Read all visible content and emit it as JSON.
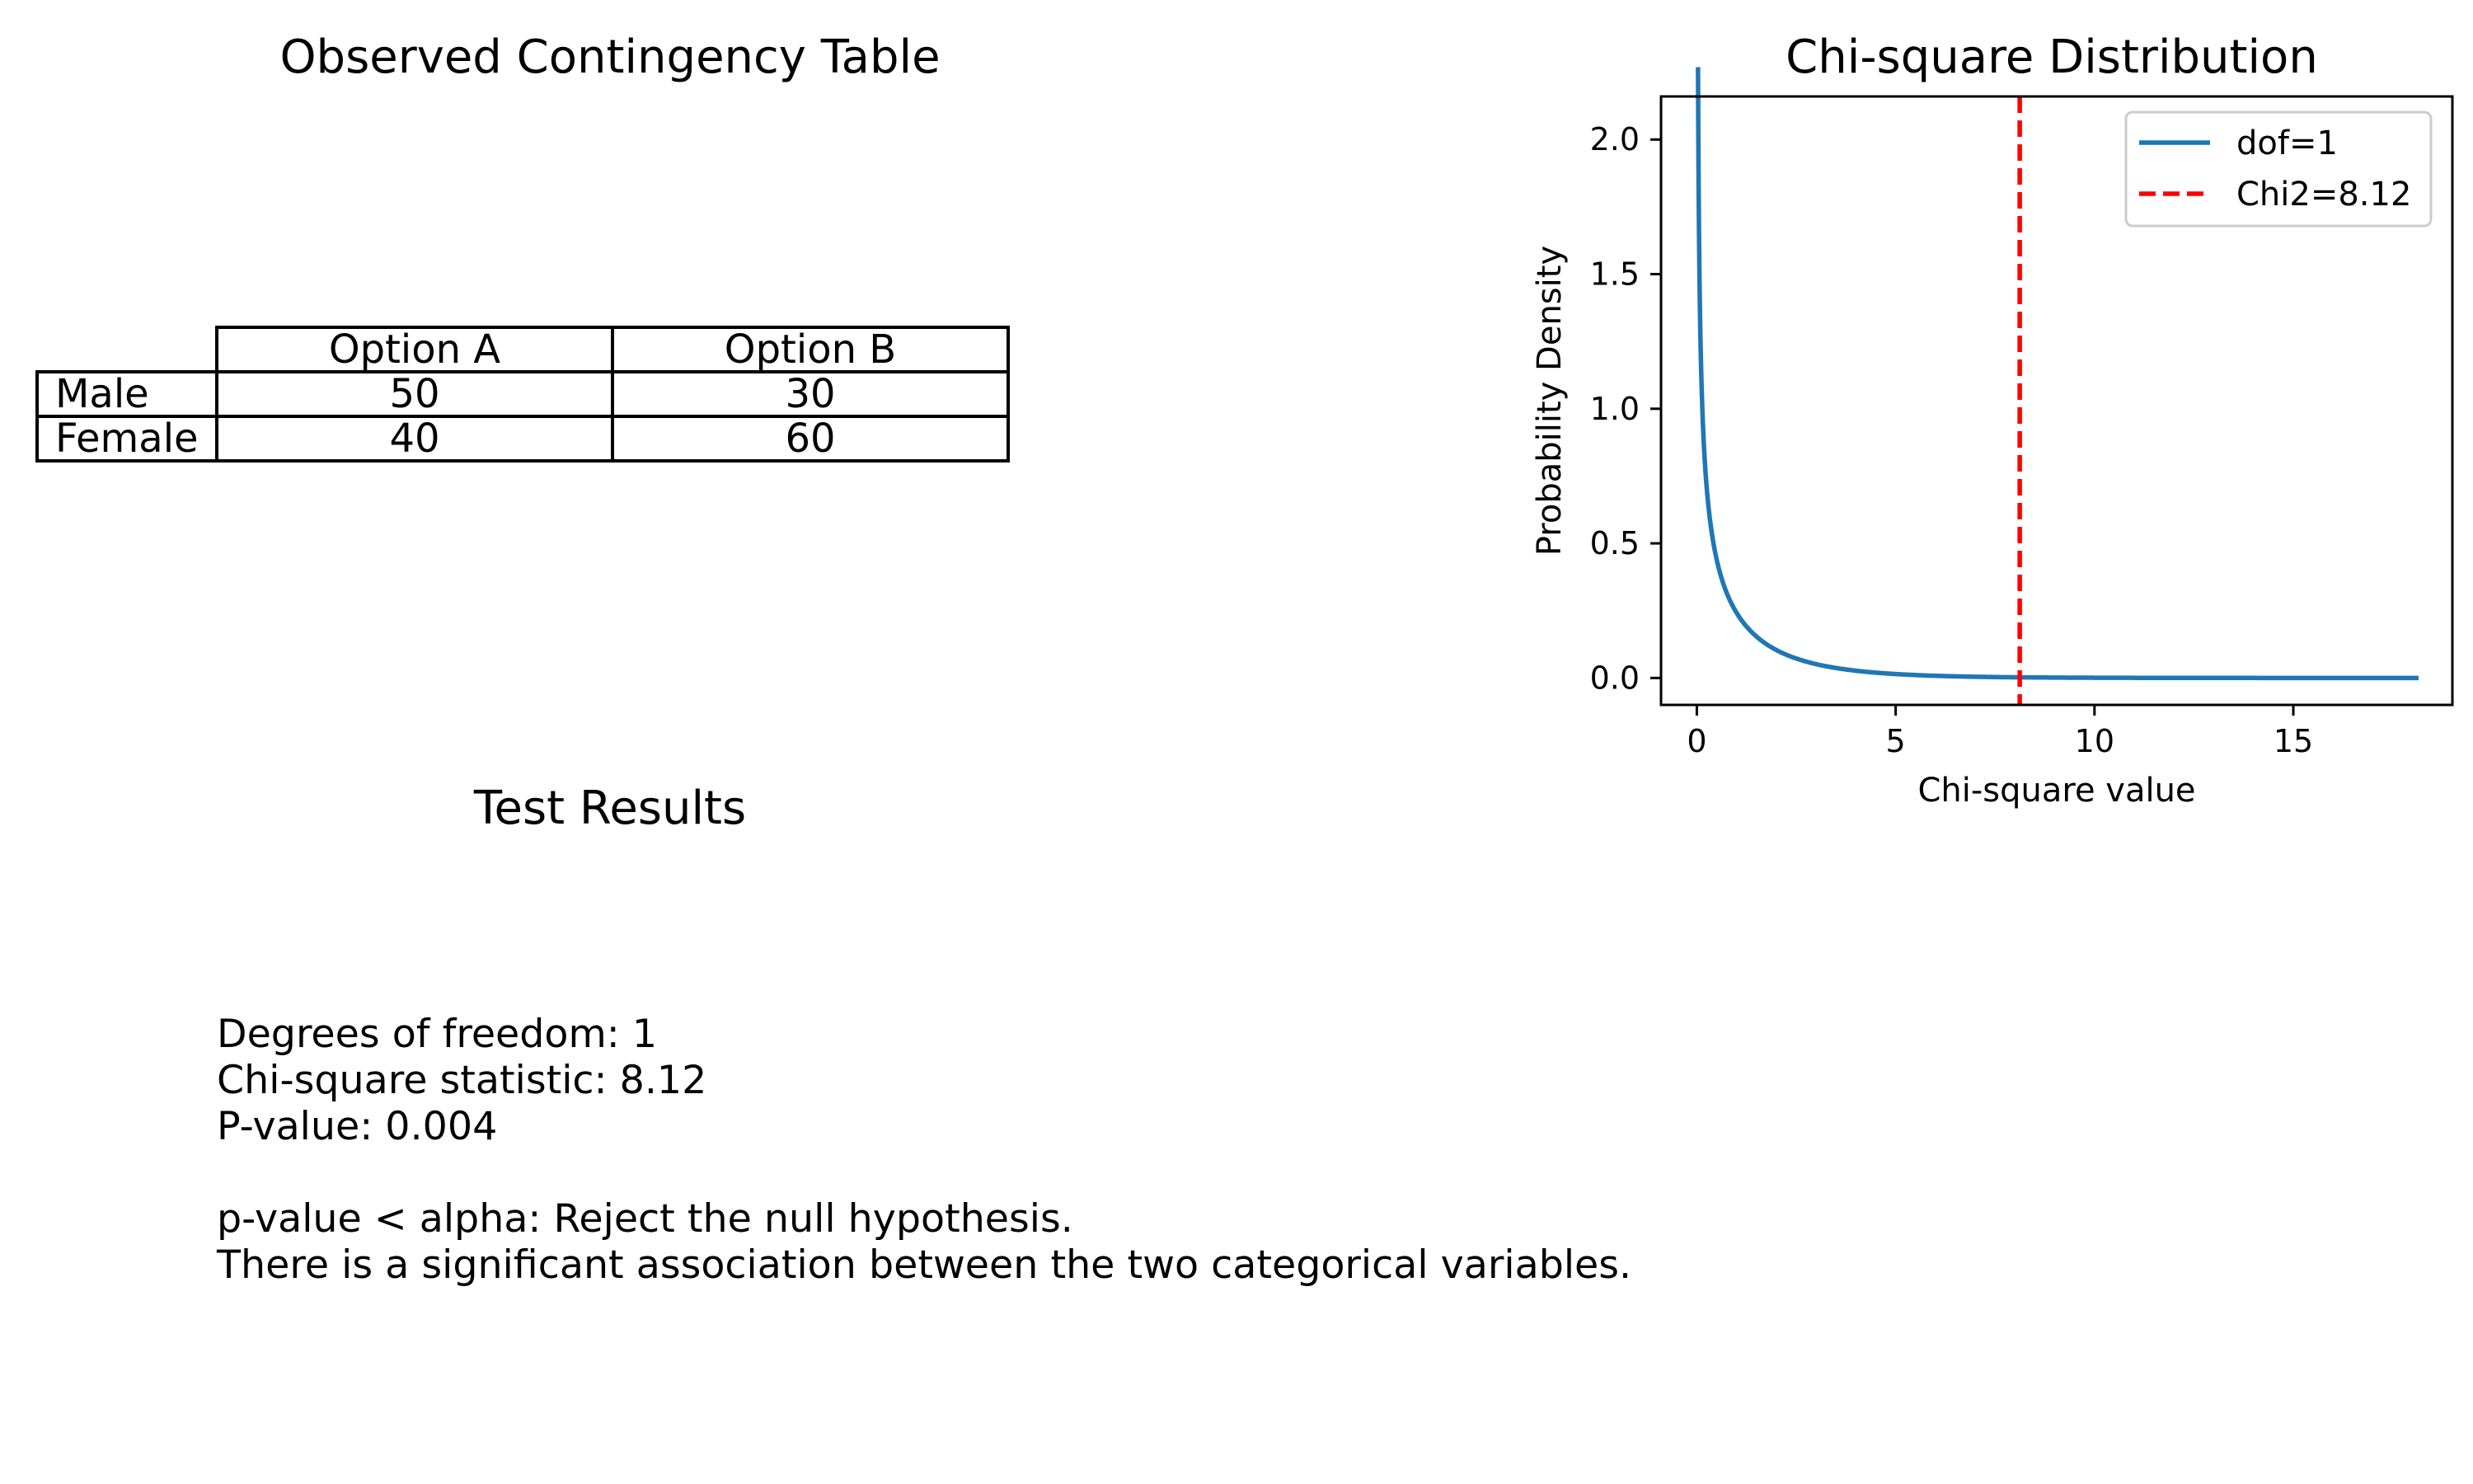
{
  "table_panel": {
    "title": "Observed Contingency Table",
    "column_headers": [
      "Option A",
      "Option B"
    ],
    "rows": [
      {
        "label": "Male",
        "values": [
          "50",
          "30"
        ]
      },
      {
        "label": "Female",
        "values": [
          "40",
          "60"
        ]
      }
    ]
  },
  "results_panel": {
    "title": "Test Results",
    "lines": [
      "Degrees of freedom: 1",
      "Chi-square statistic: 8.12",
      "P-value: 0.004",
      "",
      "p-value < alpha: Reject the null hypothesis.",
      "There is a significant association between the two categorical variables."
    ]
  },
  "chart_data": {
    "type": "line",
    "title": "Chi-square Distribution",
    "xlabel": "Chi-square value",
    "ylabel": "Probability Density",
    "xlim": [
      -0.9,
      19.0
    ],
    "ylim": [
      -0.1,
      2.16
    ],
    "xticks": [
      0,
      5,
      10,
      15
    ],
    "yticks": [
      0.0,
      0.5,
      1.0,
      1.5,
      2.0
    ],
    "grid": false,
    "legend_position": "top-right",
    "series": [
      {
        "name": "dof=1",
        "color": "#1f77b4",
        "style": "solid",
        "dof": 1,
        "x_range": [
          0.03,
          18.15
        ],
        "y_start": 2.06
      }
    ],
    "reference_lines": [
      {
        "name": "Chi2=8.12",
        "x": 8.12,
        "color": "#ff0000",
        "style": "dashed"
      }
    ]
  }
}
